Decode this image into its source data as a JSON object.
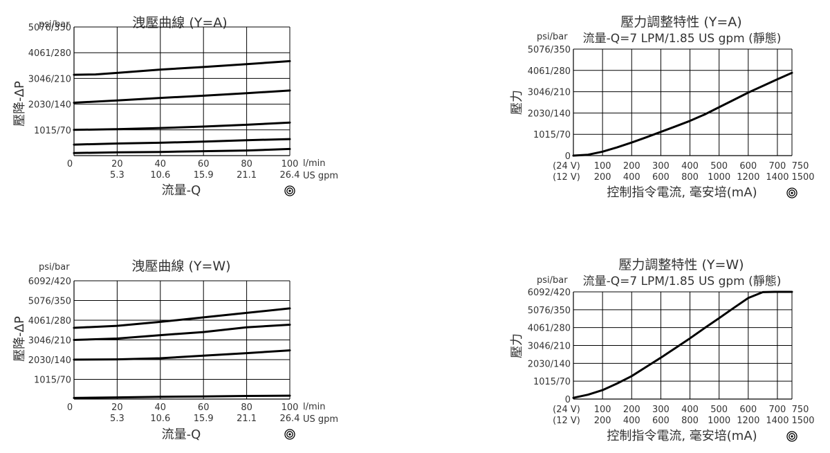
{
  "charts": {
    "c1": {
      "title": "洩壓曲線 (Y=A)",
      "unit": "psi/bar",
      "ylabel": "壓降-ΔP",
      "xlabel": "流量-Q",
      "xunit1": "l/min",
      "xunit2": "US gpm",
      "icon": "target-icon",
      "chart_data": {
        "type": "line",
        "title": "洩壓曲線 (Y=A)",
        "xlabel": "流量-Q",
        "ylabel": "壓降-ΔP",
        "xlim": [
          0,
          100
        ],
        "ylim": [
          0,
          350
        ],
        "x_ticks": [
          "0",
          "20",
          "40",
          "60",
          "80",
          "100"
        ],
        "x_ticks2": [
          "5.3",
          "10.6",
          "15.9",
          "21.1",
          "26.4"
        ],
        "y_ticks": [
          {
            "v": 70,
            "label": "1015/70"
          },
          {
            "v": 140,
            "label": "2030/140"
          },
          {
            "v": 210,
            "label": "3046/210"
          },
          {
            "v": 280,
            "label": "4061/280"
          },
          {
            "v": 350,
            "label": "5076/350"
          }
        ],
        "series": [
          {
            "x": [
              0,
              20,
              40,
              60,
              80,
              100
            ],
            "y": [
              7,
              9,
              10,
              12,
              14,
              18
            ]
          },
          {
            "x": [
              0,
              20,
              40,
              60,
              80,
              100
            ],
            "y": [
              30,
              33,
              35,
              38,
              42,
              45
            ]
          },
          {
            "x": [
              0,
              20,
              40,
              60,
              80,
              100
            ],
            "y": [
              70,
              72,
              75,
              79,
              84,
              90
            ]
          },
          {
            "x": [
              0,
              20,
              40,
              60,
              80,
              100
            ],
            "y": [
              144,
              150,
              157,
              163,
              170,
              177
            ]
          },
          {
            "x": [
              0,
              10,
              20,
              40,
              60,
              80,
              100
            ],
            "y": [
              220,
              221,
              225,
              234,
              241,
              249,
              257
            ]
          }
        ]
      }
    },
    "c2": {
      "title": "壓力調整特性 (Y=A)",
      "subtitle": "流量-Q=7 LPM/1.85 US gpm (靜態)",
      "unit": "psi/bar",
      "ylabel": "壓力",
      "xlabel": "控制指令電流, 毫安培(mA)",
      "icon": "target-icon",
      "chart_data": {
        "type": "line",
        "title": "壓力調整特性 (Y=A)",
        "xlabel": "控制指令電流, 毫安培(mA)",
        "ylabel": "壓力",
        "xlim": [
          0,
          750
        ],
        "ylim": [
          0,
          350
        ],
        "x_ticks_24v": [
          "(24 V)",
          "100",
          "200",
          "300",
          "400",
          "500",
          "600",
          "700",
          "750"
        ],
        "x_ticks_12v": [
          "(12 V)",
          "200",
          "400",
          "600",
          "800",
          "1000",
          "1200",
          "1400",
          "1500"
        ],
        "y_ticks": [
          {
            "v": 0,
            "label": "0"
          },
          {
            "v": 70,
            "label": "1015/70"
          },
          {
            "v": 140,
            "label": "2030/140"
          },
          {
            "v": 210,
            "label": "3046/210"
          },
          {
            "v": 280,
            "label": "4061/280"
          },
          {
            "v": 350,
            "label": "5076/350"
          }
        ],
        "series": [
          {
            "x": [
              0,
              50,
              100,
              150,
              200,
              250,
              300,
              350,
              400,
              450,
              500,
              550,
              600,
              650,
              700,
              750
            ],
            "y": [
              0,
              3,
              13,
              27,
              43,
              60,
              78,
              96,
              114,
              135,
              159,
              183,
              207,
              229,
              251,
              272
            ]
          }
        ]
      }
    },
    "c3": {
      "title": "洩壓曲線 (Y=W)",
      "unit": "psi/bar",
      "ylabel": "壓降-ΔP",
      "xlabel": "流量-Q",
      "xunit1": "l/min",
      "xunit2": "US gpm",
      "icon": "target-icon",
      "chart_data": {
        "type": "line",
        "title": "洩壓曲線 (Y=W)",
        "xlabel": "流量-Q",
        "ylabel": "壓降-ΔP",
        "xlim": [
          0,
          100
        ],
        "ylim": [
          0,
          420
        ],
        "x_ticks": [
          "0",
          "20",
          "40",
          "60",
          "80",
          "100"
        ],
        "x_ticks2": [
          "5.3",
          "10.6",
          "15.9",
          "21.1",
          "26.4"
        ],
        "y_ticks": [
          {
            "v": 70,
            "label": "1015/70"
          },
          {
            "v": 140,
            "label": "2030/140"
          },
          {
            "v": 210,
            "label": "3046/210"
          },
          {
            "v": 280,
            "label": "4061/280"
          },
          {
            "v": 350,
            "label": "5076/350"
          },
          {
            "v": 420,
            "label": "6092/420"
          }
        ],
        "series": [
          {
            "x": [
              0,
              20,
              40,
              60,
              80,
              100
            ],
            "y": [
              4,
              6,
              8,
              9,
              11,
              12
            ]
          },
          {
            "x": [
              0,
              20,
              40,
              60,
              80,
              100
            ],
            "y": [
              140,
              141,
              145,
              154,
              163,
              173
            ]
          },
          {
            "x": [
              0,
              20,
              40,
              60,
              80,
              100
            ],
            "y": [
              210,
              215,
              227,
              238,
              255,
              264
            ]
          },
          {
            "x": [
              0,
              20,
              40,
              60,
              80,
              100
            ],
            "y": [
              253,
              260,
              274,
              290,
              306,
              322
            ]
          }
        ]
      }
    },
    "c4": {
      "title": "壓力調整特性 (Y=W)",
      "subtitle": "流量-Q=7 LPM/1.85 US gpm (靜態)",
      "unit": "psi/bar",
      "ylabel": "壓力",
      "xlabel": "控制指令電流, 毫安培(mA)",
      "icon": "target-icon",
      "chart_data": {
        "type": "line",
        "title": "壓力調整特性 (Y=W)",
        "xlabel": "控制指令電流, 毫安培(mA)",
        "ylabel": "壓力",
        "xlim": [
          0,
          750
        ],
        "ylim": [
          0,
          420
        ],
        "x_ticks_24v": [
          "(24 V)",
          "100",
          "200",
          "300",
          "400",
          "500",
          "600",
          "700",
          "750"
        ],
        "x_ticks_12v": [
          "(12 V)",
          "200",
          "400",
          "600",
          "800",
          "1000",
          "1200",
          "1400",
          "1500"
        ],
        "y_ticks": [
          {
            "v": 0,
            "label": "0"
          },
          {
            "v": 70,
            "label": "1015/70"
          },
          {
            "v": 140,
            "label": "2030/140"
          },
          {
            "v": 210,
            "label": "3046/210"
          },
          {
            "v": 280,
            "label": "4061/280"
          },
          {
            "v": 350,
            "label": "5076/350"
          },
          {
            "v": 420,
            "label": "6092/420"
          }
        ],
        "series": [
          {
            "x": [
              0,
              50,
              100,
              150,
              200,
              250,
              300,
              350,
              400,
              450,
              500,
              550,
              600,
              650,
              690,
              710,
              750
            ],
            "y": [
              5,
              17,
              35,
              61,
              90,
              126,
              162,
              200,
              238,
              278,
              317,
              357,
              396,
              419,
              420,
              420,
              420
            ]
          }
        ]
      }
    }
  }
}
